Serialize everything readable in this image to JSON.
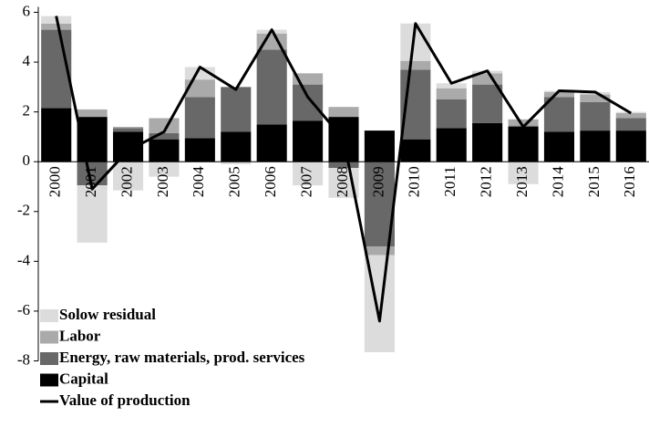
{
  "chart_data": {
    "type": "stacked-bar-line",
    "categories": [
      "2000",
      "2001",
      "2002",
      "2003",
      "2004",
      "2005",
      "2006",
      "2007",
      "2008",
      "2009",
      "2010",
      "2011",
      "2012",
      "2013",
      "2014",
      "2015",
      "2016"
    ],
    "series": [
      {
        "name": "Solow residual",
        "color": "#dcdcdc",
        "values": [
          0.3,
          -2.3,
          -1.15,
          -0.6,
          0.5,
          -0.1,
          0.15,
          -0.95,
          -1.2,
          -3.9,
          1.5,
          0.2,
          0.1,
          -0.9,
          0.05,
          0.1,
          0.05
        ]
      },
      {
        "name": "Labor",
        "color": "#aaaaaa",
        "values": [
          0.25,
          0.3,
          0.05,
          0.6,
          0.7,
          0,
          0.65,
          0.45,
          0.4,
          -0.35,
          0.35,
          0.45,
          0.45,
          0.25,
          0.2,
          0.3,
          0.2
        ]
      },
      {
        "name": "Energy, raw materials, prod. services",
        "color": "#686868",
        "values": [
          3.15,
          -0.95,
          0.15,
          0.25,
          1.65,
          1.8,
          3.0,
          1.45,
          -0.25,
          -3.4,
          2.8,
          1.15,
          1.55,
          0.05,
          1.4,
          1.15,
          0.5
        ]
      },
      {
        "name": "Capital",
        "color": "#000000",
        "values": [
          2.15,
          1.8,
          1.2,
          0.9,
          0.95,
          1.2,
          1.5,
          1.65,
          1.8,
          1.25,
          0.9,
          1.35,
          1.55,
          1.4,
          1.2,
          1.25,
          1.25
        ]
      }
    ],
    "line": {
      "name": "Value of production",
      "color": "#000000",
      "values": [
        5.85,
        -1.1,
        0.45,
        1.2,
        3.8,
        2.9,
        5.3,
        2.6,
        0.9,
        -6.4,
        5.55,
        3.15,
        3.65,
        1.4,
        2.85,
        2.8,
        1.95
      ]
    },
    "ylim": [
      -8,
      6
    ],
    "yticks": [
      -8,
      -6,
      -4,
      -2,
      0,
      2,
      4,
      6
    ]
  }
}
